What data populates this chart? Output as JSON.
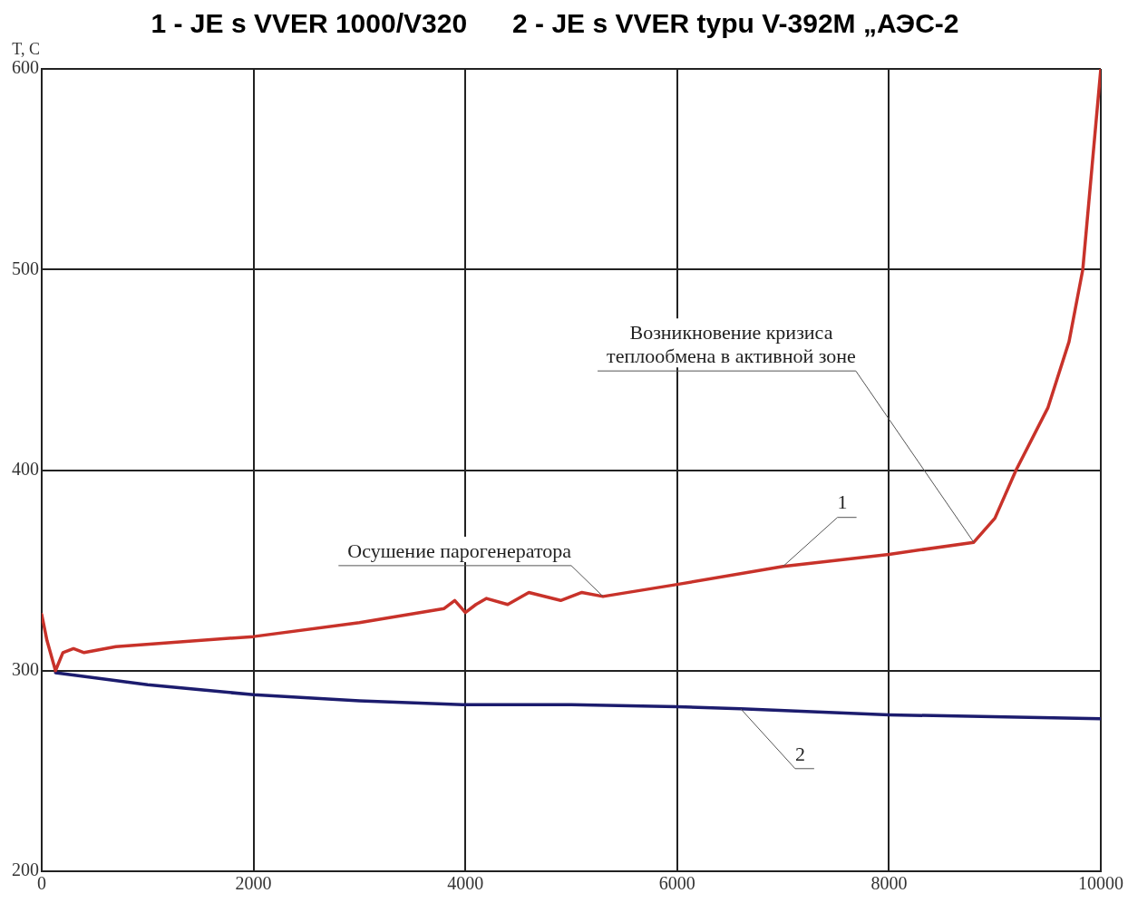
{
  "chart_data": {
    "type": "line",
    "title": "1 - JE s VVER 1000/V320      2 - JE s VVER typu V-392M „АЭС-2",
    "ylabel": "T, C",
    "series": [
      {
        "color": "#c8322a",
        "x": [
          0,
          50,
          130,
          200,
          300,
          400,
          700,
          2000,
          3000,
          3800,
          3900,
          4000,
          4100,
          4200,
          4400,
          4600,
          4900,
          5100,
          5300,
          6000,
          7000,
          8000,
          8800,
          9000,
          9200,
          9500,
          9700,
          9830,
          10000
        ],
        "values": [
          328,
          315,
          300,
          309,
          311,
          309,
          312,
          317,
          324,
          331,
          335,
          329,
          333,
          336,
          333,
          339,
          335,
          339,
          337,
          343,
          352,
          358,
          364,
          376,
          400,
          431,
          464,
          500,
          600
        ]
      },
      {
        "color": "#1c1c6e",
        "x": [
          130,
          1000,
          2000,
          3000,
          4000,
          5000,
          6000,
          6600,
          8000,
          10000
        ],
        "values": [
          299,
          293,
          288,
          285,
          283,
          283,
          282,
          281,
          278,
          276
        ]
      }
    ],
    "annotations": [
      {
        "text": "Возникновение кризиса\nтеплообмена в активной зоне",
        "x": 8800,
        "y": 364
      },
      {
        "text": "Осушение парогенератора",
        "x": 5300,
        "y": 337
      },
      {
        "text": "1",
        "x": 7000,
        "y": 352
      },
      {
        "text": "2",
        "x": 6600,
        "y": 281
      }
    ],
    "xlim": [
      0,
      10000
    ],
    "xticks": [
      0,
      2000,
      4000,
      6000,
      8000,
      10000
    ],
    "ylim": [
      200,
      600
    ],
    "yticks": [
      200,
      300,
      400,
      500,
      600
    ],
    "grid": true,
    "legend": false,
    "marker": "none",
    "line_style": "solid"
  }
}
